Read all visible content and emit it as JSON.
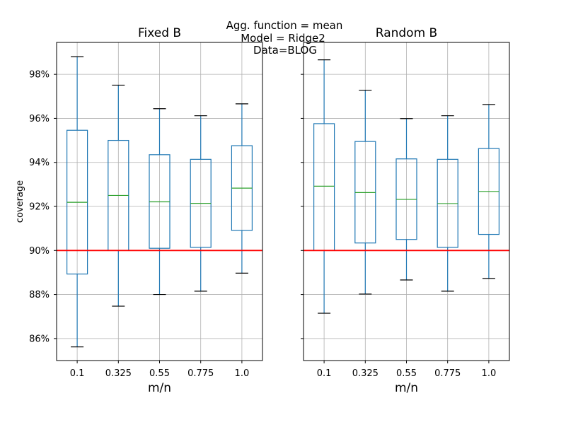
{
  "suptitle": {
    "line1": "Agg. function = mean",
    "line2": "Model = Ridge2",
    "line3": "Data=BLOG"
  },
  "colors": {
    "box": "#1f77b4",
    "median": "#2ca02c",
    "reference_line": "#ff0000",
    "grid": "#b0b0b0",
    "cap": "#000000"
  },
  "chart_data": [
    {
      "type": "box",
      "title": "Fixed B",
      "xlabel": "m/n",
      "ylabel": "coverage",
      "categories": [
        "0.1",
        "0.325",
        "0.55",
        "0.775",
        "1.0"
      ],
      "ylim": [
        0.85,
        0.9945
      ],
      "yticks": [
        0.86,
        0.88,
        0.9,
        0.92,
        0.94,
        0.96,
        0.98
      ],
      "ytick_labels": [
        "86%",
        "88%",
        "90%",
        "92%",
        "94%",
        "96%",
        "98%"
      ],
      "reference_line": 0.9,
      "grid": true,
      "boxes": [
        {
          "whislo": 0.8562,
          "q1": 0.8893,
          "med": 0.9219,
          "q3": 0.9546,
          "whishi": 0.988
        },
        {
          "whislo": 0.8747,
          "q1": 0.9,
          "med": 0.925,
          "q3": 0.95,
          "whishi": 0.9751
        },
        {
          "whislo": 0.88,
          "q1": 0.901,
          "med": 0.9221,
          "q3": 0.9435,
          "whishi": 0.9644
        },
        {
          "whislo": 0.8815,
          "q1": 0.9014,
          "med": 0.9214,
          "q3": 0.9414,
          "whishi": 0.9612
        },
        {
          "whislo": 0.8897,
          "q1": 0.9091,
          "med": 0.9283,
          "q3": 0.9476,
          "whishi": 0.9666
        }
      ]
    },
    {
      "type": "box",
      "title": "Random B",
      "xlabel": "m/n",
      "ylabel": "",
      "categories": [
        "0.1",
        "0.325",
        "0.55",
        "0.775",
        "1.0"
      ],
      "ylim": [
        0.85,
        0.9945
      ],
      "yticks": [
        0.86,
        0.88,
        0.9,
        0.92,
        0.94,
        0.96,
        0.98
      ],
      "ytick_labels": [],
      "reference_line": 0.9,
      "grid": true,
      "boxes": [
        {
          "whislo": 0.8715,
          "q1": 0.9,
          "med": 0.9292,
          "q3": 0.9576,
          "whishi": 0.9866
        },
        {
          "whislo": 0.8802,
          "q1": 0.9034,
          "med": 0.9263,
          "q3": 0.9495,
          "whishi": 0.9728
        },
        {
          "whislo": 0.8866,
          "q1": 0.905,
          "med": 0.9232,
          "q3": 0.9416,
          "whishi": 0.9599
        },
        {
          "whislo": 0.8815,
          "q1": 0.9014,
          "med": 0.9213,
          "q3": 0.9414,
          "whishi": 0.9612
        },
        {
          "whislo": 0.8873,
          "q1": 0.9073,
          "med": 0.9268,
          "q3": 0.9463,
          "whishi": 0.9663
        }
      ]
    }
  ]
}
